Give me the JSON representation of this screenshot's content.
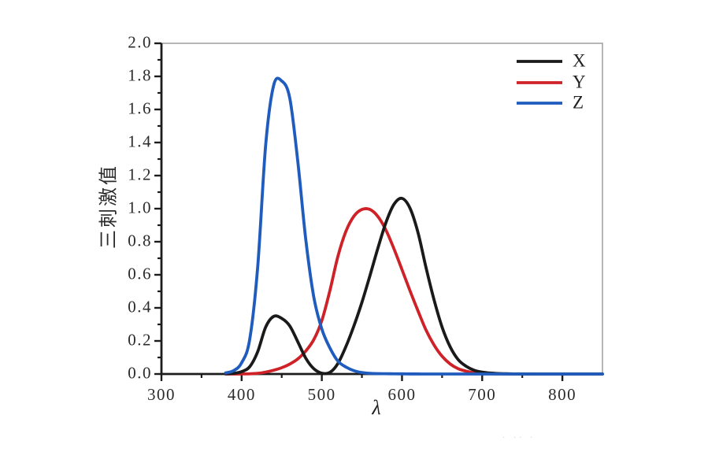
{
  "figure": {
    "background": "#ffffff",
    "axis_color": "#1c1c1c",
    "frame_color": "#9e9e9e",
    "tick_text_color": "#2b2b2b"
  },
  "watermark": "· ··  ·",
  "chart_data": {
    "type": "line",
    "title": "",
    "xlabel": "λ",
    "ylabel": "三刺激值",
    "xlim": [
      300,
      850
    ],
    "ylim": [
      0.0,
      2.0
    ],
    "grid": false,
    "legend_position": "top-right",
    "x_tick_labels": [
      "300",
      "400",
      "500",
      "600",
      "700",
      "800"
    ],
    "x_minor_ticks": [
      350,
      450,
      550,
      650,
      750
    ],
    "y_tick_labels": [
      "0.0",
      "0.2",
      "0.4",
      "0.6",
      "0.8",
      "1.0",
      "1.2",
      "1.4",
      "1.6",
      "1.8",
      "2.0"
    ],
    "y_minor_ticks": [
      0.1,
      0.3,
      0.5,
      0.7,
      0.9,
      1.1,
      1.3,
      1.5,
      1.7,
      1.9
    ],
    "x": [
      380,
      390,
      400,
      410,
      420,
      430,
      440,
      450,
      460,
      470,
      480,
      490,
      500,
      510,
      520,
      530,
      540,
      550,
      560,
      570,
      580,
      590,
      600,
      610,
      620,
      630,
      640,
      650,
      660,
      670,
      680,
      690,
      700,
      710,
      720,
      730,
      740,
      750,
      760,
      770,
      780,
      790,
      800,
      810,
      820,
      830,
      840,
      850
    ],
    "series": [
      {
        "name": "X",
        "color": "#1a1a1a",
        "peak": {
          "wavelength": 600,
          "value": 1.0622
        },
        "values": [
          0.0014,
          0.0042,
          0.0143,
          0.0435,
          0.1344,
          0.2839,
          0.3483,
          0.3362,
          0.2908,
          0.1954,
          0.0956,
          0.032,
          0.0049,
          0.0093,
          0.0633,
          0.1655,
          0.2904,
          0.4334,
          0.5945,
          0.7621,
          0.9163,
          1.0263,
          1.0622,
          1.0026,
          0.8544,
          0.6424,
          0.4479,
          0.2835,
          0.1649,
          0.0874,
          0.0468,
          0.0227,
          0.0114,
          0.0058,
          0.0029,
          0.0014,
          0.0007,
          0.0003,
          0.0002,
          0.0001,
          0,
          0,
          0,
          0,
          0,
          0,
          0,
          0
        ]
      },
      {
        "name": "Y",
        "color": "#cf2128",
        "peak": {
          "wavelength": 555,
          "value": 1.0
        },
        "values": [
          0,
          0.0001,
          0.0004,
          0.0012,
          0.004,
          0.0116,
          0.023,
          0.038,
          0.06,
          0.091,
          0.139,
          0.208,
          0.323,
          0.503,
          0.71,
          0.862,
          0.954,
          0.995,
          0.995,
          0.952,
          0.87,
          0.757,
          0.631,
          0.503,
          0.381,
          0.265,
          0.175,
          0.107,
          0.061,
          0.032,
          0.017,
          0.0082,
          0.0041,
          0.0021,
          0.001,
          0.0005,
          0.0003,
          0.0001,
          0.0001,
          0,
          0,
          0,
          0,
          0,
          0,
          0,
          0,
          0
        ]
      },
      {
        "name": "Z",
        "color": "#1f5cbe",
        "peak": {
          "wavelength": 445,
          "value": 1.7826
        },
        "values": [
          0.0065,
          0.0201,
          0.0679,
          0.2074,
          0.6456,
          1.3856,
          1.7471,
          1.7721,
          1.6692,
          1.2876,
          0.813,
          0.4652,
          0.272,
          0.1582,
          0.0782,
          0.0422,
          0.0203,
          0.0087,
          0.0039,
          0.0021,
          0.0017,
          0.0011,
          0.0008,
          0.0003,
          0.0002,
          0,
          0,
          0,
          0,
          0,
          0,
          0,
          0,
          0,
          0,
          0,
          0,
          0,
          0,
          0,
          0,
          0,
          0,
          0,
          0,
          0,
          0,
          0
        ]
      }
    ]
  }
}
